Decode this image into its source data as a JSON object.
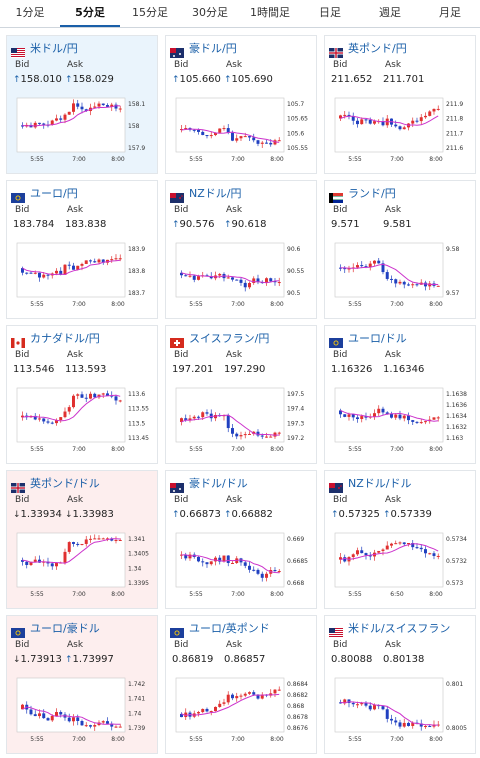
{
  "tabs": [
    {
      "label": "1分足",
      "active": false
    },
    {
      "label": "5分足",
      "active": true
    },
    {
      "label": "15分足",
      "active": false
    },
    {
      "label": "30分足",
      "active": false
    },
    {
      "label": "1時間足",
      "active": false
    },
    {
      "label": "日足",
      "active": false
    },
    {
      "label": "週足",
      "active": false
    },
    {
      "label": "月足",
      "active": false
    }
  ],
  "labels": {
    "bid": "Bid",
    "ask": "Ask"
  },
  "x_ticks": [
    "5:55",
    "7:00",
    "8:00"
  ],
  "x_ticks_alt": [
    "5:55",
    "6:50",
    "8:00"
  ],
  "colors": {
    "candle_up": "#e03030",
    "candle_down": "#2040c0",
    "ma": "#cc33cc",
    "ma2": "#33aadd",
    "pair_text": "#1a5fa8",
    "tint_blue": "#eaf4fc",
    "tint_pink": "#fdeeee"
  },
  "cards": [
    {
      "pair": "米ドル/円",
      "flag": "us",
      "tint": "blue",
      "bid": "158.010",
      "bid_dir": "up",
      "ask": "158.029",
      "ask_dir": "up",
      "y_ticks": [
        "158.1",
        "158",
        "157.9"
      ]
    },
    {
      "pair": "豪ドル/円",
      "flag": "au",
      "tint": "none",
      "bid": "105.660",
      "bid_dir": "up",
      "ask": "105.690",
      "ask_dir": "up",
      "y_ticks": [
        "105.7",
        "105.65",
        "105.6",
        "105.55"
      ]
    },
    {
      "pair": "英ポンド/円",
      "flag": "gb",
      "tint": "none",
      "bid": "211.652",
      "bid_dir": "none",
      "ask": "211.701",
      "ask_dir": "none",
      "y_ticks": [
        "211.9",
        "211.8",
        "211.7",
        "211.6"
      ]
    },
    {
      "pair": "ユーロ/円",
      "flag": "eu",
      "tint": "none",
      "bid": "183.784",
      "bid_dir": "none",
      "ask": "183.838",
      "ask_dir": "none",
      "y_ticks": [
        "183.9",
        "183.8",
        "183.7"
      ]
    },
    {
      "pair": "NZドル/円",
      "flag": "nz",
      "tint": "none",
      "bid": "90.576",
      "bid_dir": "up",
      "ask": "90.618",
      "ask_dir": "up",
      "y_ticks": [
        "90.6",
        "90.55",
        "90.5"
      ]
    },
    {
      "pair": "ランド/円",
      "flag": "za",
      "tint": "none",
      "bid": "9.571",
      "bid_dir": "none",
      "ask": "9.581",
      "ask_dir": "none",
      "y_ticks": [
        "9.58",
        "9.57"
      ]
    },
    {
      "pair": "カナダドル/円",
      "flag": "ca",
      "tint": "none",
      "bid": "113.546",
      "bid_dir": "none",
      "ask": "113.593",
      "ask_dir": "none",
      "y_ticks": [
        "113.6",
        "113.55",
        "113.5",
        "113.45"
      ]
    },
    {
      "pair": "スイスフラン/円",
      "flag": "ch",
      "tint": "none",
      "bid": "197.201",
      "bid_dir": "none",
      "ask": "197.290",
      "ask_dir": "none",
      "y_ticks": [
        "197.5",
        "197.4",
        "197.3",
        "197.2"
      ]
    },
    {
      "pair": "ユーロ/ドル",
      "flag": "eu",
      "tint": "none",
      "bid": "1.16326",
      "bid_dir": "none",
      "ask": "1.16346",
      "ask_dir": "none",
      "y_ticks": [
        "1.1638",
        "1.1636",
        "1.1634",
        "1.1632",
        "1.163"
      ]
    },
    {
      "pair": "英ポンド/ドル",
      "flag": "gb",
      "tint": "pink",
      "bid": "1.33934",
      "bid_dir": "down",
      "ask": "1.33983",
      "ask_dir": "down",
      "y_ticks": [
        "1.341",
        "1.3405",
        "1.34",
        "1.3395"
      ]
    },
    {
      "pair": "豪ドル/ドル",
      "flag": "au",
      "tint": "none",
      "bid": "0.66873",
      "bid_dir": "up",
      "ask": "0.66882",
      "ask_dir": "up",
      "y_ticks": [
        "0.669",
        "0.6685",
        "0.668"
      ]
    },
    {
      "pair": "NZドル/ドル",
      "flag": "nz",
      "tint": "none",
      "bid": "0.57325",
      "bid_dir": "up",
      "ask": "0.57339",
      "ask_dir": "up",
      "y_ticks": [
        "0.5734",
        "0.5732",
        "0.573"
      ]
    },
    {
      "pair": "ユーロ/豪ドル",
      "flag": "eu",
      "tint": "pink",
      "bid": "1.73913",
      "bid_dir": "down",
      "ask": "1.73997",
      "ask_dir": "up",
      "y_ticks": [
        "1.742",
        "1.741",
        "1.74",
        "1.739"
      ]
    },
    {
      "pair": "ユーロ/英ポンド",
      "flag": "eu",
      "tint": "none",
      "bid": "0.86819",
      "bid_dir": "none",
      "ask": "0.86857",
      "ask_dir": "none",
      "y_ticks": [
        "0.8684",
        "0.8682",
        "0.868",
        "0.8678",
        "0.8676"
      ]
    },
    {
      "pair": "米ドル/スイスフラン",
      "flag": "us",
      "tint": "none",
      "bid": "0.80088",
      "bid_dir": "none",
      "ask": "0.80138",
      "ask_dir": "none",
      "y_ticks": [
        "0.801",
        "0.8005"
      ]
    }
  ]
}
